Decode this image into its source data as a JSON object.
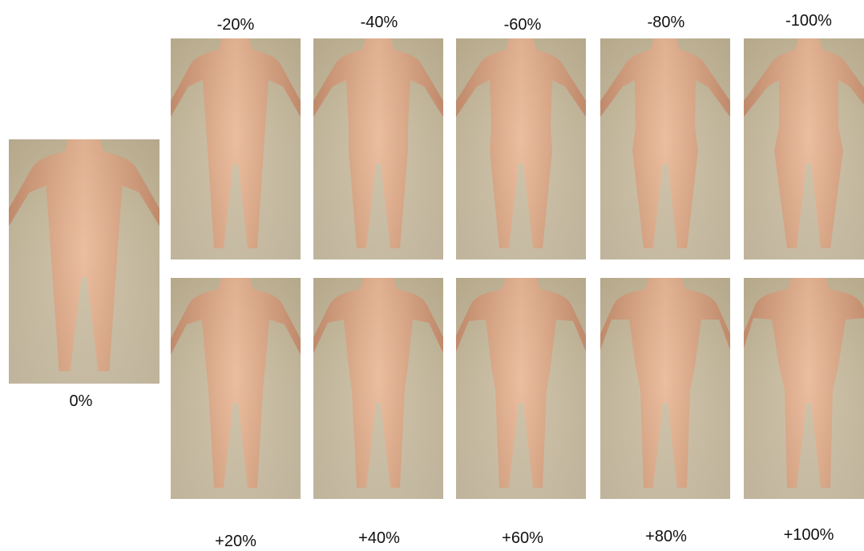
{
  "base": {
    "label": "0%"
  },
  "top_row": [
    {
      "label": "-20%"
    },
    {
      "label": "-40%"
    },
    {
      "label": "-60%"
    },
    {
      "label": "-80%"
    },
    {
      "label": "-100%"
    }
  ],
  "bottom_row": [
    {
      "label": "+20%"
    },
    {
      "label": "+40%"
    },
    {
      "label": "+60%"
    },
    {
      "label": "+80%"
    },
    {
      "label": "+100%"
    }
  ],
  "colors": {
    "wall_background": "#c8bb9d",
    "bodysuit_skin": "#e6b08c",
    "bodysuit_shadow": "#c98e6c"
  }
}
